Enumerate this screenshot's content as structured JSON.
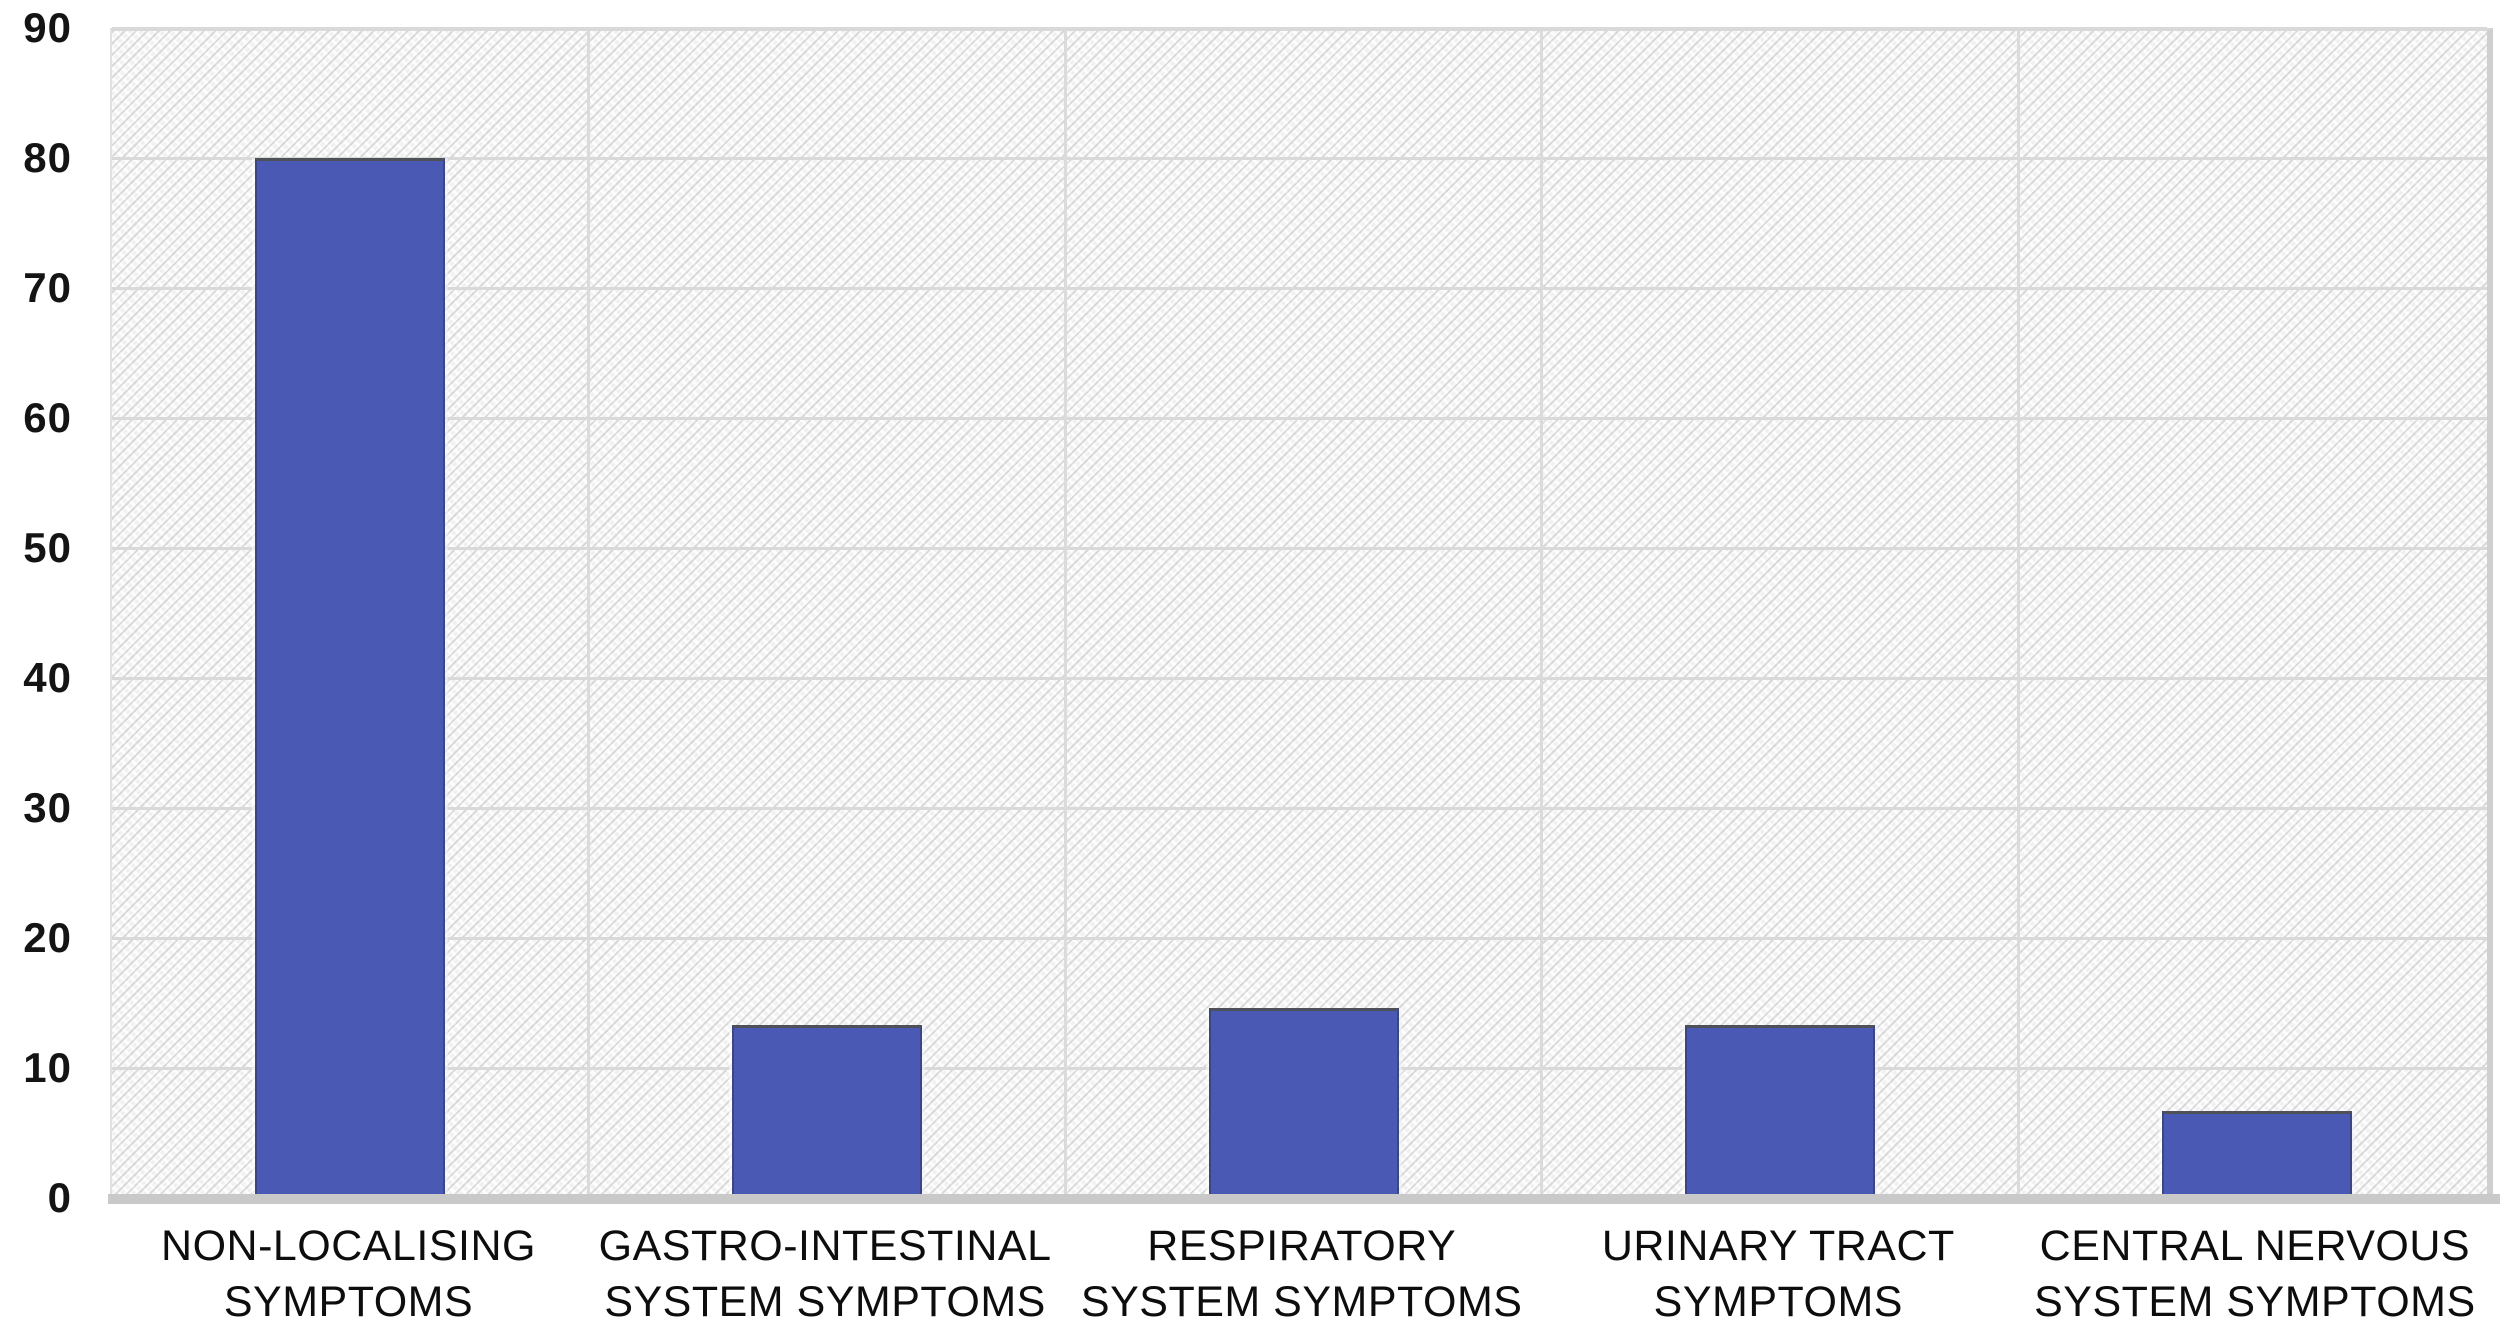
{
  "chart_data": {
    "type": "bar",
    "title": "",
    "xlabel": "",
    "ylabel": "",
    "categories": [
      "NON-LOCALISING SYMPTOMS",
      "GASTRO-INTESTINAL SYSTEM SYMPTOMS",
      "RESPIRATORY SYSTEM SYMPTOMS",
      "URINARY TRACT SYMPTOMS",
      "CENTRAL NERVOUS SYSTEM SYMPTOMS"
    ],
    "categories_lines": [
      [
        "NON-LOCALISING",
        "SYMPTOMS"
      ],
      [
        "GASTRO-INTESTINAL",
        "SYSTEM SYMPTOMS"
      ],
      [
        "RESPIRATORY",
        "SYSTEM SYMPTOMS"
      ],
      [
        "URINARY TRACT",
        "SYMPTOMS"
      ],
      [
        "CENTRAL NERVOUS",
        "SYSTEM SYMPTOMS"
      ]
    ],
    "values": [
      80,
      13.3,
      14.6,
      13.3,
      6.7
    ],
    "yticks": [
      0,
      10,
      20,
      30,
      40,
      50,
      60,
      70,
      80,
      90
    ],
    "ylim": [
      0,
      90
    ],
    "grid": "horizontal every 10 units, vertical at category boundaries",
    "legend": "none",
    "colors": {
      "bar_fill": "#4a59b4",
      "bar_edge": "#3c477f",
      "bar_top_edge": "#4e5158",
      "gridline": "#d9d9d9",
      "axis_line": "#c9c9c9",
      "plot_background": "#f7f7f7",
      "text": "#0d0d0d"
    }
  }
}
